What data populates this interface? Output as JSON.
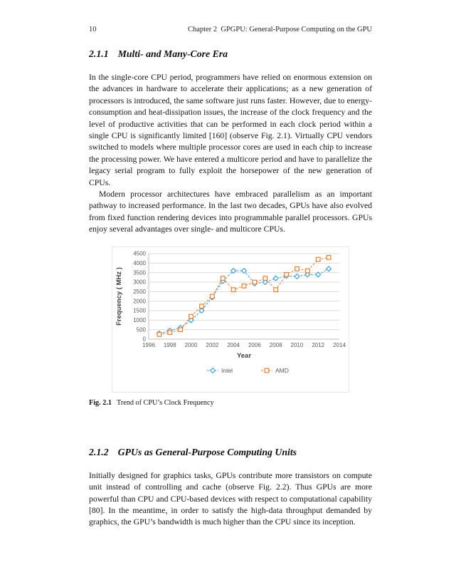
{
  "page": {
    "number": "10",
    "running_header": "Chapter 2  GPGPU: General-Purpose Computing on the GPU"
  },
  "section1": {
    "heading_number": "2.1.1",
    "heading_title": "Multi- and Many-Core Era",
    "para1": "In the single-core CPU period, programmers have relied on enormous extension on the advances in hardware to accelerate their applications; as a new generation of processors is introduced, the same software just runs faster. However, due to energy-consumption and heat-dissipation issues, the increase of the clock frequency and the level of productive activities that can be performed in each clock period within a single CPU is significantly limited [160] (observe Fig. 2.1). Virtually CPU vendors switched to models where multiple processor cores are used in each chip to increase the processing power. We have entered a multicore period and have to parallelize the legacy serial program to fully exploit the horsepower of the new generation of CPUs.",
    "para2": "Modern processor architectures have embraced parallelism as an important pathway to increased performance. In the last two decades, GPUs have also evolved from fixed function rendering devices into programmable parallel processors. GPUs enjoy several advantages over single- and multicore CPUs."
  },
  "figure": {
    "caption_label": "Fig. 2.1",
    "caption_text": "Trend of CPU’s Clock Frequency"
  },
  "chart_data": {
    "type": "scatter",
    "title": "",
    "xlabel": "Year",
    "ylabel": "Frequency ( MHz )",
    "xlim": [
      1996,
      2014
    ],
    "ylim": [
      0,
      4500
    ],
    "xticks": [
      1996,
      1998,
      2000,
      2002,
      2004,
      2006,
      2008,
      2010,
      2012,
      2014
    ],
    "yticks": [
      0,
      500,
      1000,
      1500,
      2000,
      2500,
      3000,
      3500,
      4000,
      4500
    ],
    "grid": true,
    "legend_position": "bottom",
    "line_style": "dashed",
    "series": [
      {
        "name": "Intel",
        "color": "#3fa0dc",
        "marker": "diamond",
        "x": [
          1997,
          1998,
          1999,
          2000,
          2001,
          2002,
          2003,
          2004,
          2005,
          2006,
          2007,
          2008,
          2009,
          2010,
          2011,
          2012,
          2013
        ],
        "y": [
          300,
          450,
          600,
          1000,
          1500,
          2200,
          3060,
          3600,
          3600,
          2930,
          3000,
          3200,
          3330,
          3300,
          3400,
          3400,
          3700
        ]
      },
      {
        "name": "AMD",
        "color": "#ed7d31",
        "marker": "square",
        "x": [
          1997,
          1998,
          1999,
          2000,
          2001,
          2002,
          2003,
          2004,
          2005,
          2006,
          2007,
          2008,
          2009,
          2010,
          2011,
          2012,
          2013
        ],
        "y": [
          250,
          350,
          500,
          1200,
          1733,
          2250,
          3200,
          2600,
          2800,
          3000,
          3200,
          2600,
          3400,
          3700,
          3600,
          4200,
          4300
        ]
      }
    ]
  },
  "section2": {
    "heading_number": "2.1.2",
    "heading_title": "GPUs as General-Purpose Computing Units",
    "para1": "Initially designed for graphics tasks, GPUs contribute more transistors on compute unit instead of controlling and cache (observe Fig. 2.2). Thus GPUs are more powerful than CPU and CPU-based devices with respect to computational capability [80]. In the meantime, in order to satisfy the high-data throughput demanded by graphics, the GPU’s bandwidth is much higher than the CPU since its inception."
  }
}
